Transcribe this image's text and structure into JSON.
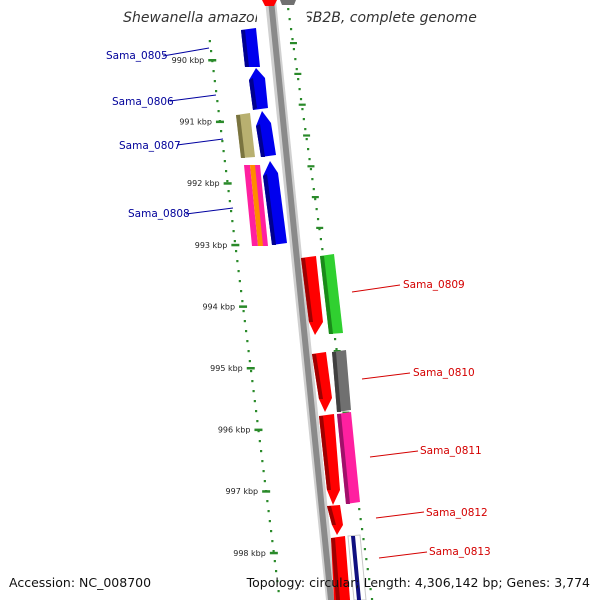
{
  "title": "Shewanella amazonensis SB2B, complete genome",
  "footer": {
    "accession": "Accession: NC_008700",
    "summary": "Topology: circular; Length: 4,306,142 bp; Genes: 3,774"
  },
  "colors": {
    "backbone": "#888888",
    "tick": "#2a8a2a",
    "label_left": "#00009a",
    "label_right": "#d40000"
  },
  "ruler": {
    "unit": "kbp",
    "ticks": [
      {
        "kbp": 990,
        "label": "990 kbp"
      },
      {
        "kbp": 991,
        "label": "991 kbp"
      },
      {
        "kbp": 992,
        "label": "992 kbp"
      },
      {
        "kbp": 993,
        "label": "993 kbp"
      },
      {
        "kbp": 994,
        "label": "994 kbp"
      },
      {
        "kbp": 995,
        "label": "995 kbp"
      },
      {
        "kbp": 996,
        "label": "996 kbp"
      },
      {
        "kbp": 997,
        "label": "997 kbp"
      },
      {
        "kbp": 998,
        "label": "998 kbp"
      }
    ]
  },
  "gene_labels": {
    "left": [
      "Sama_0805",
      "Sama_0806",
      "Sama_0807",
      "Sama_0808"
    ],
    "right": [
      "Sama_0809",
      "Sama_0810",
      "Sama_0811",
      "Sama_0812",
      "Sama_0813"
    ]
  },
  "features": [
    {
      "name": "Sama_0805",
      "strand": "reverse",
      "color": "#0000ee"
    },
    {
      "name": "Sama_0806",
      "strand": "reverse",
      "color": "#0000ee"
    },
    {
      "name": "Sama_0807",
      "strand": "reverse",
      "color": "#0000ee",
      "extra_colors": [
        "#b8b070"
      ]
    },
    {
      "name": "Sama_0808",
      "strand": "reverse",
      "color": "#0000ee",
      "extra_colors": [
        "#ff20a0",
        "#ff8c00"
      ]
    },
    {
      "name": "Sama_0809",
      "strand": "forward",
      "color": "#ff0000",
      "extra_colors": [
        "#30d030"
      ]
    },
    {
      "name": "Sama_0810",
      "strand": "forward",
      "color": "#ff0000",
      "extra_colors": [
        "#707070"
      ]
    },
    {
      "name": "Sama_0811",
      "strand": "forward",
      "color": "#ff0000",
      "extra_colors": [
        "#ff20a0"
      ]
    },
    {
      "name": "Sama_0812",
      "strand": "forward",
      "color": "#ff0000"
    },
    {
      "name": "Sama_0813",
      "strand": "forward",
      "color": "#ff0000",
      "extra_colors": [
        "#101080"
      ]
    }
  ]
}
